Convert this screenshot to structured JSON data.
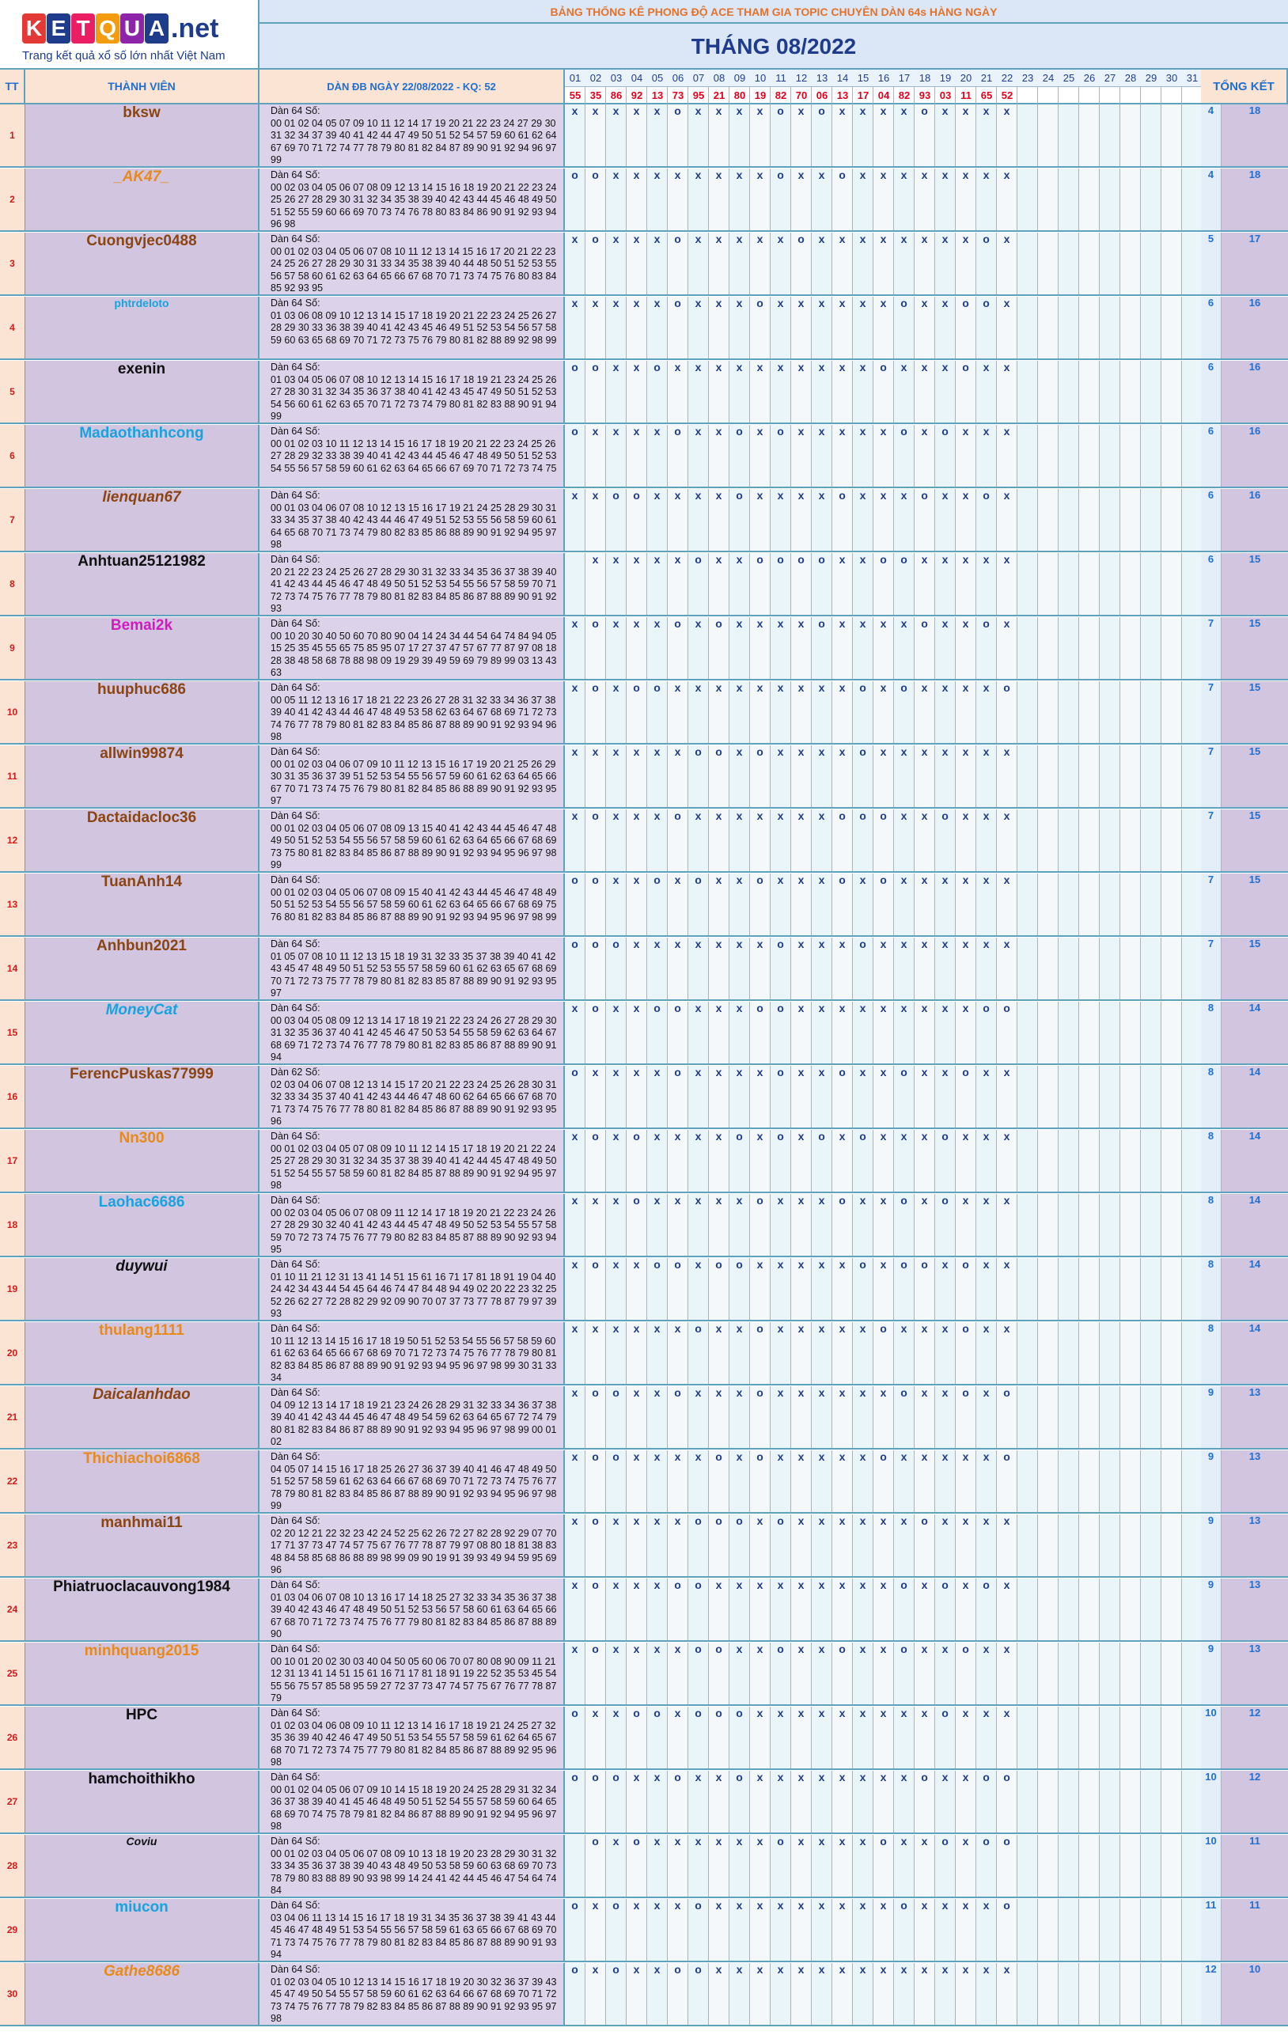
{
  "logo": {
    "letters": [
      "K",
      "E",
      "T",
      "Q",
      "U",
      "A"
    ],
    "letter_colors": [
      "#e53935",
      "#1f3c8c",
      "#e91e63",
      "#f39c12",
      "#8e24aa",
      "#1f3c8c"
    ],
    "suffix": ".net",
    "tagline": "Trang kết quả xổ số lớn nhất Việt Nam"
  },
  "banner": "BẢNG THỐNG KÊ PHONG ĐỘ ACE THAM GIA TOPIC CHUYÊN DÀN 64s HÀNG NGÀY",
  "month_title": "THÁNG 08/2022",
  "headers": {
    "stt": "TT",
    "member": "THÀNH VIÊN",
    "dan": "DÀN ĐB NGÀY 22/08/2022 - KQ: 52",
    "total": "TỔNG KẾT"
  },
  "days": [
    "01",
    "02",
    "03",
    "04",
    "05",
    "06",
    "07",
    "08",
    "09",
    "10",
    "11",
    "12",
    "13",
    "14",
    "15",
    "16",
    "17",
    "18",
    "19",
    "20",
    "21",
    "22",
    "23",
    "24",
    "25",
    "26",
    "27",
    "28",
    "29",
    "30",
    "31"
  ],
  "results": [
    "55",
    "35",
    "86",
    "92",
    "13",
    "73",
    "95",
    "21",
    "80",
    "19",
    "82",
    "70",
    "06",
    "13",
    "17",
    "04",
    "82",
    "93",
    "03",
    "11",
    "65",
    "52",
    "",
    "",
    "",
    "",
    "",
    "",
    "",
    "",
    ""
  ],
  "rows": [
    {
      "stt": "1",
      "name": "bksw",
      "style": "n-brown",
      "dan_title": "Dàn 64 Số:",
      "dan": "00 01 02 04 05 07 09 10 11 12 14 17 19 20 21 22 23 24 27 29 30 31 32 34 37 39 40 41 42 44 47 49 50 51 52 54 57 59 60 61 62 64 67 69 70 71 72 74 77 78 79 80 81 82 84 87 89 90 91 92 94 96 97 99",
      "marks": "xxxxxoxxxxoxoxxxxoxxxx",
      "hits": "4",
      "score": "18"
    },
    {
      "stt": "2",
      "name": "_AK47_",
      "style": "n-orange n-italic",
      "dan_title": "Dàn 64 Số:",
      "dan": "00 02 03 04 05 06 07 08 09 12 13 14 15 16 18 19 20 21 22 23 24 25 26 27 28 29 30 31 32 34 35 38 39 40 42 43 44 45 46 48 49 50 51 52 55 59 60 66 69 70 73 74 76 78 80 83 84 86 90 91 92 93 94 96 98",
      "marks": "ooxxxxxxxxoxxoxxxxxxxx",
      "hits": "4",
      "score": "18"
    },
    {
      "stt": "3",
      "name": "Cuongvjec0488",
      "style": "n-brown",
      "dan_title": "Dàn 64 Số:",
      "dan": "00 01 02 03 04 05 06 07 08 10 11 12 13 14 15 16 17 20 21 22 23 24 25 26 27 28 29 30 31 33 34 35 38 39 40 44 48 50 51 52 53 55 56 57 58 60 61 62 63 64 65 66 67 68 70 71 73 74 75 76 80 83 84 85 92 93 95",
      "marks": "xoxxxoxxxxxoxxxxxxxxox",
      "hits": "5",
      "score": "17"
    },
    {
      "stt": "4",
      "name": "phtrdeloto",
      "style": "n-cyan n-small",
      "dan_title": "Dàn 64 Số:",
      "dan": "01 03 06 08 09 10 12 13 14 15 17 18 19 20 21 22 23 24 25 26 27 28 29 30 33 36 38 39 40 41 42 43 45 46 49 51 52 53 54 56 57 58 59 60 63 65 68 69 70 71 72 73 75 76 79 80 81 82 88 89 92 98 99",
      "marks": "xxxxxoxxxoxxxxxxoxxoox",
      "hits": "6",
      "score": "16"
    },
    {
      "stt": "5",
      "name": "exenin",
      "style": "n-black",
      "dan_title": "Dàn 64 Số:",
      "dan": "01 03 04 05 06 07 08 10 12 13 14 15 16 17 18 19 21 23 24 25 26 27 28 30 31 32 34 35 36 37 38 40 41 42 43 45 47 49 50 51 52 53 54 56 60 61 62 63 65 70 71 72 73 74 79 80 81 82 83 88 90 91 94 99",
      "marks": "ooxxoxxxxxxxxxxoxxxoxx",
      "hits": "6",
      "score": "16"
    },
    {
      "stt": "6",
      "name": "Madaothanhcong",
      "style": "n-cyan",
      "dan_title": "Dàn 64 Số:",
      "dan": "00 01 02 03 10 11 12 13 14 15 16 17 18 19 20 21 22 23 24 25 26 27 28 29 32 33 38 39 40 41 42 43 44 45 46 47 48 49 50 51 52 53 54 55 56 57 58 59 60 61 62 63 64 65 66 67 69 70 71 72 73 74 75",
      "marks": "oxxxxoxxoxoxxxxxoxoxxx",
      "hits": "6",
      "score": "16"
    },
    {
      "stt": "7",
      "name": "lienquan67",
      "style": "n-brown n-italic",
      "dan_title": "Dàn 64 Số:",
      "dan": "00 01 03 04 06 07 08 10 12 13 15 16 17 19 21 24 25 28 29 30 31 33 34 35 37 38 40 42 43 44 46 47 49 51 52 53 55 56 58 59 60 61 64 65 68 70 71 73 74 79 80 82 83 85 86 88 89 90 91 92 94 95 97 98",
      "marks": "xxooxxxxoxxxxoxxxoxxox",
      "hits": "6",
      "score": "16"
    },
    {
      "stt": "8",
      "name": "Anhtuan25121982",
      "style": "n-black",
      "dan_title": "Dàn 64 Số:",
      "dan": "20 21 22 23 24 25 26 27 28 29 30 31 32 33 34 35 36 37 38 39 40 41 42 43 44 45 46 47 48 49 50 51 52 53 54 55 56 57 58 59 70 71 72 73 74 75 76 77 78 79 80 81 82 83 84 85 86 87 88 89 90 91 92 93",
      "marks": " xxxxxoxxooooxxooxxxxx",
      "hits": "6",
      "score": "15"
    },
    {
      "stt": "9",
      "name": "Bemai2k",
      "style": "n-pink",
      "dan_title": "Dàn 64 Số:",
      "dan": "00 10 20 30 40 50 60 70 80 90 04 14 24 34 44 54 64 74 84 94 05 15 25 35 45 55 65 75 85 95 07 17 27 37 47 57 67 77 87 97 08 18 28 38 48 58 68 78 88 98 09 19 29 39 49 59 69 79 89 99 03 13 43 63",
      "marks": "xoxxxoxoxxxxoxxxxoxxox",
      "hits": "7",
      "score": "15"
    },
    {
      "stt": "10",
      "name": "huuphuc686",
      "style": "n-brown",
      "dan_title": "Dàn 64 Số:",
      "dan": "00 05 11 12 13 16 17 18 21 22 23 26 27 28 31 32 33 34 36 37 38 39 40 41 42 43 44 46 47 48 49 53 58 62 63 64 67 68 69 71 72 73 74 76 77 78 79 80 81 82 83 84 85 86 87 88 89 90 91 92 93 94 96 98",
      "marks": "xoxooxxxxxxxxxoxoxxxxo",
      "hits": "7",
      "score": "15"
    },
    {
      "stt": "11",
      "name": "allwin99874",
      "style": "n-brown",
      "dan_title": "Dàn 64 Số:",
      "dan": "00 01 02 03 04 06 07 09 10 11 12 13 15 16 17 19 20 21 25 26 29 30 31 35 36 37 39 51 52 53 54 55 56 57 59 60 61 62 63 64 65 66 67 70 71 73 74 75 76 79 80 81 82 84 85 86 88 89 90 91 92 93 95 97",
      "marks": "xxxxxxooxoxxxxoxxxxxxx",
      "hits": "7",
      "score": "15"
    },
    {
      "stt": "12",
      "name": "Dactaidacloc36",
      "style": "n-brown",
      "dan_title": "Dàn 64 Số:",
      "dan": "00 01 02 03 04 05 06 07 08 09 13 15 40 41 42 43 44 45 46 47 48 49 50 51 52 53 54 55 56 57 58 59 60 61 62 63 64 65 66 67 68 69 73 75 80 81 82 83 84 85 86 87 88 89 90 91 92 93 94 95 96 97 98 99",
      "marks": "xoxxxoxxxxxxxoooxxoxxx",
      "hits": "7",
      "score": "15"
    },
    {
      "stt": "13",
      "name": "TuanAnh14",
      "style": "n-brown",
      "dan_title": "Dàn 64 Số:",
      "dan": "00 01 02 03 04 05 06 07 08 09 15 40 41 42 43 44 45 46 47 48 49 50 51 52 53 54 55 56 57 58 59 60 61 62 63 64 65 66 67 68 69 75 76 80 81 82 83 84 85 86 87 88 89 90 91 92 93 94 95 96 97 98 99",
      "marks": "ooxxoxoxxoxxxoxoxxxxxx",
      "hits": "7",
      "score": "15"
    },
    {
      "stt": "14",
      "name": "Anhbun2021",
      "style": "n-brown",
      "dan_title": "Dàn 64 Số:",
      "dan": "01 05 07 08 10 11 12 13 15 18 19 31 32 33 35 37 38 39 40 41 42 43 45 47 48 49 50 51 52 53 55 57 58 59 60 61 62 63 65 67 68 69 70 71 72 73 75 77 78 79 80 81 82 83 85 87 88 89 90 91 92 93 95 97",
      "marks": "oooxxxxxxxoxxxoxxxxxxx",
      "hits": "7",
      "score": "15"
    },
    {
      "stt": "15",
      "name": "MoneyCat",
      "style": "n-cyan n-italic",
      "dan_title": "Dàn 64 Số:",
      "dan": "00 03 04 05 08 09 12 13 14 17 18 19 21 22 23 24 26 27 28 29 30 31 32 35 36 37 40 41 42 45 46 47 50 53 54 55 58 59 62 63 64 67 68 69 71 72 73 74 76 77 78 79 80 81 82 83 85 86 87 88 89 90 91 94",
      "marks": "xoxxooxxxooxxxxxxxxxoo",
      "hits": "8",
      "score": "14"
    },
    {
      "stt": "16",
      "name": "FerencPuskas77999",
      "style": "n-brown",
      "dan_title": "Dàn 62 Số:",
      "dan": "02 03 04 06 07 08 12 13 14 15 17 20 21 22 23 24 25 26 28 30 31 32 33 34 35 37 40 41 42 43 44 46 47 48 60 62 64 65 66 67 68 70 71 73 74 75 76 77 78 80 81 82 84 85 86 87 88 89 90 91 92 93 95 96",
      "marks": "oxxxxoxxxxoxxoxxoxxoxx",
      "hits": "8",
      "score": "14"
    },
    {
      "stt": "17",
      "name": "Nn300",
      "style": "n-orange",
      "dan_title": "Dàn 64 Số:",
      "dan": "00 01 02 03 04 05 07 08 09 10 11 12 14 15 17 18 19 20 21 22 24 25 27 28 29 30 31 32 34 35 37 38 39 40 41 42 44 45 47 48 49 50 51 52 54 55 57 58 59 60 81 82 84 85 87 88 89 90 91 92 94 95 97 98",
      "marks": "xoxoxxxxoxoxoxoxxxoxxx",
      "hits": "8",
      "score": "14"
    },
    {
      "stt": "18",
      "name": "Laohac6686",
      "style": "n-cyan",
      "dan_title": "Dàn 64 Số:",
      "dan": "00 02 03 04 05 06 07 08 09 11 12 14 17 18 19 20 21 22 23 24 26 27 28 29 30 32 40 41 42 43 44 45 47 48 49 50 52 53 54 55 57 58 59 70 72 73 74 75 76 77 79 80 82 83 84 85 87 88 89 90 92 93 94 95",
      "marks": "xxxoxxxxxoxxxoxxoxoxxx",
      "hits": "8",
      "score": "14"
    },
    {
      "stt": "19",
      "name": "duywui",
      "style": "n-black n-italic",
      "dan_title": "Dàn 64 Số:",
      "dan": "01 10 11 21 12 31 13 41 14 51 15 61 16 71 17 81 18 91 19 04 40 24 42 34 43 44 54 45 64 46 74 47 84 48 94 49 02 20 22 23 32 25 52 26 62 27 72 28 82 29 92 09 90 70 07 37 73 77 78 87 79 97 39 93",
      "marks": "xoxxooxooxxxxxoxooxoxx",
      "hits": "8",
      "score": "14"
    },
    {
      "stt": "20",
      "name": "thulang1111",
      "style": "n-orange",
      "dan_title": "Dàn 64 Số:",
      "dan": "10 11 12 13 14 15 16 17 18 19 50 51 52 53 54 55 56 57 58 59 60 61 62 63 64 65 66 67 68 69 70 71 72 73 74 75 76 77 78 79 80 81 82 83 84 85 86 87 88 89 90 91 92 93 94 95 96 97 98 99 30 31 33 34",
      "marks": "xxxxxxoxxoxxxxxoxxxoxx",
      "hits": "8",
      "score": "14"
    },
    {
      "stt": "21",
      "name": "Daicalanhdao",
      "style": "n-brown n-italic",
      "dan_title": "Dàn 64 Số:",
      "dan": "04 09 12 13 14 17 18 19 21 23 24 26 28 29 31 32 33 34 36 37 38 39 40 41 42 43 44 45 46 47 48 49 54 59 62 63 64 65 67 72 74 79 80 81 82 83 84 86 87 88 89 90 91 92 93 94 95 96 97 98 99 00 01 02",
      "marks": "xooxxoxxxoxxxxxxoxxoxo",
      "hits": "9",
      "score": "13"
    },
    {
      "stt": "22",
      "name": "Thichiachoi6868",
      "style": "n-orange",
      "dan_title": "Dàn 64 Số:",
      "dan": "04 05 07 14 15 16 17 18 25 26 27 36 37 39 40 41 46 47 48 49 50 51 52 57 58 59 61 62 63 64 66 67 68 69 70 71 72 73 74 75 76 77 78 79 80 81 82 83 84 85 86 87 88 89 90 91 92 93 94 95 96 97 98 99",
      "marks": "xooxxxxoxoxxxxxoxxxxxo",
      "hits": "9",
      "score": "13"
    },
    {
      "stt": "23",
      "name": "manhmai11",
      "style": "n-brown",
      "dan_title": "Dàn 64 Số:",
      "dan": "02 20 12 21 22 32 23 42 24 52 25 62 26 72 27 82 28 92 29 07 70 17 71 37 73 47 74 57 75 67 76 77 78 87 79 97 08 80 18 81 38 83 48 84 58 85 68 86 88 89 98 99 09 90 19 91 39 93 49 94 59 95 69 96",
      "marks": "xoxxxxoooxoxxxxxxoxxxx",
      "hits": "9",
      "score": "13"
    },
    {
      "stt": "24",
      "name": "Phiatruoclacauvong1984",
      "style": "n-black",
      "dan_title": "Dàn 64 Số:",
      "dan": "01 03 04 06 07 08 10 13 16 17 14 18 25 27 32 33 34 35 36 37 38 39 40 42 43 46 47 48 49 50 51 52 53 56 57 58 60 61 63 64 65 66 67 68 70 71 72 73 74 75 76 77 79 80 81 82 83 84 85 86 87 88 89 90",
      "marks": "xoxxxooxxxxxxxxxoxoxox",
      "hits": "9",
      "score": "13"
    },
    {
      "stt": "25",
      "name": "minhquang2015",
      "style": "n-orange",
      "dan_title": "Dàn 64 Số:",
      "dan": "00 10 01 20 02 30 03 40 04 50 05 60 06 70 07 80 08 90 09 11 21 12 31 13 41 14 51 15 61 16 71 17 81 18 91 19 22 52 35 53 45 54 55 56 75 57 85 58 95 59 27 72 37 73 47 74 57 75 67 76 77 78 87 79",
      "marks": "xoxxxxooxxoxxoxxoxxoxx",
      "hits": "9",
      "score": "13"
    },
    {
      "stt": "26",
      "name": "HPC",
      "style": "n-black",
      "dan_title": "Dàn 64 Số:",
      "dan": "01 02 03 04 06 08 09 10 11 12 13 14 16 17 18 19 21 24 25 27 32 35 36 39 40 42 46 47 49 50 51 53 54 55 57 58 59 61 62 64 65 67 68 70 71 72 73 74 75 77 79 80 81 82 84 85 86 87 88 89 92 95 96 98",
      "marks": "oxxooxoooxxxxxxxxxoxxx",
      "hits": "10",
      "score": "12"
    },
    {
      "stt": "27",
      "name": "hamchoithikho",
      "style": "n-black",
      "dan_title": "Dàn 64 Số:",
      "dan": "00 01 02 04 05 06 07 09 10 14 15 18 19 20 24 25 28 29 31 32 34 36 37 38 39 40 41 45 46 48 49 50 51 52 54 55 57 58 59 60 64 65 68 69 70 74 75 78 79 81 82 84 86 87 88 89 90 91 92 94 95 96 97 98",
      "marks": "oooxxoxxoxxxxxxxxoxxoo",
      "hits": "10",
      "score": "12"
    },
    {
      "stt": "28",
      "name": "Coviu",
      "style": "n-black n-italic n-small",
      "dan_title": "Dàn 64 Số:",
      "dan": "00 01 02 03 04 05 06 07 08 09 10 13 18 19 20 23 28 29 30 31 32 33 34 35 36 37 38 39 40 43 48 49 50 53 58 59 60 63 68 69 70 73 78 79 80 83 88 89 90 93 98 99 14 24 41 42 44 45 46 47 54 64 74 84",
      "marks": " oxoxxxxxxoxxxxoxxoxoo",
      "hits": "10",
      "score": "11"
    },
    {
      "stt": "29",
      "name": "miucon",
      "style": "n-cyan",
      "dan_title": "Dàn 64 Số:",
      "dan": "03 04 06 11 13 14 15 16 17 18 19 31 34 35 36 37 38 39 41 43 44 45 46 47 48 49 51 53 54 55 56 57 58 59 61 63 65 66 67 68 69 70 71 73 74 75 76 77 78 79 80 81 82 83 84 85 86 87 88 89 90 91 93 94",
      "marks": "oxoxxxoxxxxxxxxxoxxxxo",
      "hits": "11",
      "score": "11"
    },
    {
      "stt": "30",
      "name": "Gathe8686",
      "style": "n-orange n-italic",
      "dan_title": "Dàn 64 Số:",
      "dan": "01 02 03 04 05 10 12 13 14 15 16 17 18 19 20 30 32 36 37 39 43 45 47 49 50 54 55 57 58 59 60 61 62 63 64 66 67 68 69 70 71 72 73 74 75 76 77 78 79 82 83 84 85 86 87 88 89 90 91 92 93 95 97 98",
      "marks": "oxoxxooxxxxxxxxxxxxxxx",
      "hits": "12",
      "score": "10"
    }
  ]
}
